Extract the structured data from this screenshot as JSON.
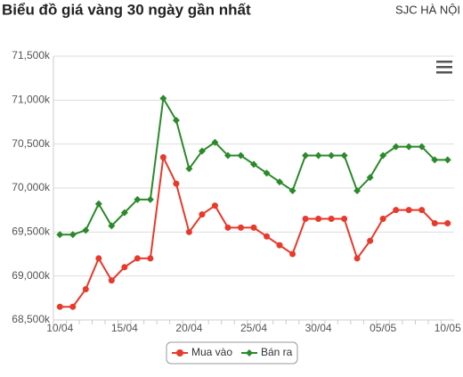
{
  "chart_data": {
    "type": "line",
    "title": "Biểu đồ giá vàng 30 ngày gần nhất",
    "subtitle": "SJC HÀ NỘI",
    "categories": [
      "10/04",
      null,
      null,
      null,
      null,
      "15/04",
      null,
      null,
      null,
      null,
      "20/04",
      null,
      null,
      null,
      null,
      "25/04",
      null,
      null,
      null,
      null,
      "30/04",
      null,
      null,
      null,
      null,
      "05/05",
      null,
      null,
      null,
      null,
      "10/05"
    ],
    "series": [
      {
        "name": "Mua vào",
        "color": "#e8392b",
        "values": [
          68650,
          68650,
          68850,
          69200,
          68950,
          69100,
          69200,
          69200,
          70350,
          70050,
          69500,
          69700,
          69800,
          69550,
          69550,
          69550,
          69450,
          69350,
          69250,
          69650,
          69650,
          69650,
          69650,
          69200,
          69400,
          69650,
          69750,
          69750,
          69750,
          69600,
          69600
        ]
      },
      {
        "name": "Bán ra",
        "color": "#2a8a2a",
        "values": [
          69470,
          69470,
          69520,
          69820,
          69570,
          69720,
          69870,
          69870,
          71020,
          70770,
          70220,
          70420,
          70520,
          70370,
          70370,
          70270,
          70170,
          70070,
          69970,
          70370,
          70370,
          70370,
          70370,
          69970,
          70120,
          70370,
          70470,
          70470,
          70470,
          70320,
          70320
        ]
      }
    ],
    "ylim": [
      68500,
      71500
    ],
    "yticks": [
      {
        "value": 68500,
        "label": "68,500k"
      },
      {
        "value": 69000,
        "label": "69,000k"
      },
      {
        "value": 69500,
        "label": "69,500k"
      },
      {
        "value": 70000,
        "label": "70,000k"
      },
      {
        "value": 70500,
        "label": "70,500k"
      },
      {
        "value": 71000,
        "label": "71,000k"
      },
      {
        "value": 71500,
        "label": "71,500k"
      }
    ],
    "grid": true,
    "legend": "bottom"
  }
}
